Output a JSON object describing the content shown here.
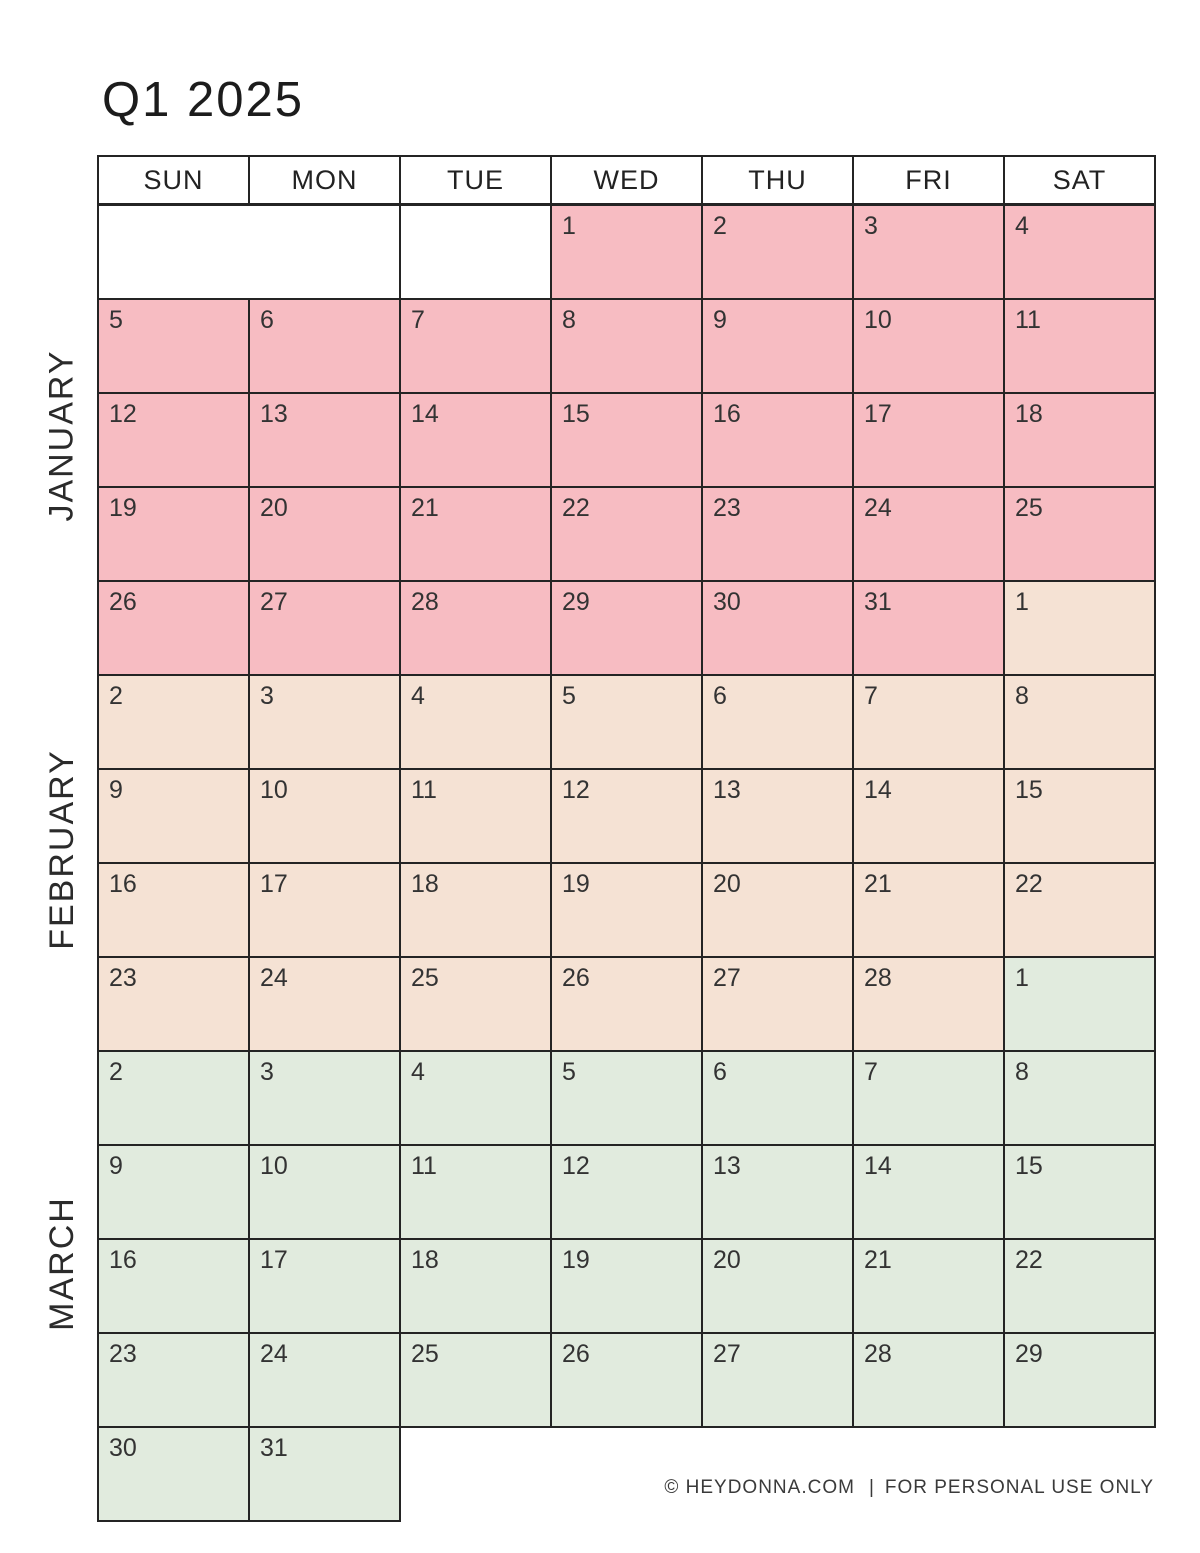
{
  "title": "Q1 2025",
  "day_headers": [
    "SUN",
    "MON",
    "TUE",
    "WED",
    "THU",
    "FRI",
    "SAT"
  ],
  "months": [
    {
      "id": "jan",
      "label": "JANUARY",
      "color": "#f7bcc2"
    },
    {
      "id": "feb",
      "label": "FEBRUARY",
      "color": "#f5e2d4"
    },
    {
      "id": "mar",
      "label": "MARCH",
      "color": "#e1ebde"
    }
  ],
  "weeks": [
    [
      {
        "b": 2
      },
      {
        "b": 1
      },
      {
        "d": 1,
        "m": "jan"
      },
      {
        "d": 2,
        "m": "jan"
      },
      {
        "d": 3,
        "m": "jan"
      },
      {
        "d": 4,
        "m": "jan"
      }
    ],
    [
      {
        "d": 5,
        "m": "jan"
      },
      {
        "d": 6,
        "m": "jan"
      },
      {
        "d": 7,
        "m": "jan"
      },
      {
        "d": 8,
        "m": "jan"
      },
      {
        "d": 9,
        "m": "jan"
      },
      {
        "d": 10,
        "m": "jan"
      },
      {
        "d": 11,
        "m": "jan"
      }
    ],
    [
      {
        "d": 12,
        "m": "jan"
      },
      {
        "d": 13,
        "m": "jan"
      },
      {
        "d": 14,
        "m": "jan"
      },
      {
        "d": 15,
        "m": "jan"
      },
      {
        "d": 16,
        "m": "jan"
      },
      {
        "d": 17,
        "m": "jan"
      },
      {
        "d": 18,
        "m": "jan"
      }
    ],
    [
      {
        "d": 19,
        "m": "jan"
      },
      {
        "d": 20,
        "m": "jan"
      },
      {
        "d": 21,
        "m": "jan"
      },
      {
        "d": 22,
        "m": "jan"
      },
      {
        "d": 23,
        "m": "jan"
      },
      {
        "d": 24,
        "m": "jan"
      },
      {
        "d": 25,
        "m": "jan"
      }
    ],
    [
      {
        "d": 26,
        "m": "jan"
      },
      {
        "d": 27,
        "m": "jan"
      },
      {
        "d": 28,
        "m": "jan"
      },
      {
        "d": 29,
        "m": "jan"
      },
      {
        "d": 30,
        "m": "jan"
      },
      {
        "d": 31,
        "m": "jan"
      },
      {
        "d": 1,
        "m": "feb"
      }
    ],
    [
      {
        "d": 2,
        "m": "feb"
      },
      {
        "d": 3,
        "m": "feb"
      },
      {
        "d": 4,
        "m": "feb"
      },
      {
        "d": 5,
        "m": "feb"
      },
      {
        "d": 6,
        "m": "feb"
      },
      {
        "d": 7,
        "m": "feb"
      },
      {
        "d": 8,
        "m": "feb"
      }
    ],
    [
      {
        "d": 9,
        "m": "feb"
      },
      {
        "d": 10,
        "m": "feb"
      },
      {
        "d": 11,
        "m": "feb"
      },
      {
        "d": 12,
        "m": "feb"
      },
      {
        "d": 13,
        "m": "feb"
      },
      {
        "d": 14,
        "m": "feb"
      },
      {
        "d": 15,
        "m": "feb"
      }
    ],
    [
      {
        "d": 16,
        "m": "feb"
      },
      {
        "d": 17,
        "m": "feb"
      },
      {
        "d": 18,
        "m": "feb"
      },
      {
        "d": 19,
        "m": "feb"
      },
      {
        "d": 20,
        "m": "feb"
      },
      {
        "d": 21,
        "m": "feb"
      },
      {
        "d": 22,
        "m": "feb"
      }
    ],
    [
      {
        "d": 23,
        "m": "feb"
      },
      {
        "d": 24,
        "m": "feb"
      },
      {
        "d": 25,
        "m": "feb"
      },
      {
        "d": 26,
        "m": "feb"
      },
      {
        "d": 27,
        "m": "feb"
      },
      {
        "d": 28,
        "m": "feb"
      },
      {
        "d": 1,
        "m": "mar"
      }
    ],
    [
      {
        "d": 2,
        "m": "mar"
      },
      {
        "d": 3,
        "m": "mar"
      },
      {
        "d": 4,
        "m": "mar"
      },
      {
        "d": 5,
        "m": "mar"
      },
      {
        "d": 6,
        "m": "mar"
      },
      {
        "d": 7,
        "m": "mar"
      },
      {
        "d": 8,
        "m": "mar"
      }
    ],
    [
      {
        "d": 9,
        "m": "mar"
      },
      {
        "d": 10,
        "m": "mar"
      },
      {
        "d": 11,
        "m": "mar"
      },
      {
        "d": 12,
        "m": "mar"
      },
      {
        "d": 13,
        "m": "mar"
      },
      {
        "d": 14,
        "m": "mar"
      },
      {
        "d": 15,
        "m": "mar"
      }
    ],
    [
      {
        "d": 16,
        "m": "mar"
      },
      {
        "d": 17,
        "m": "mar"
      },
      {
        "d": 18,
        "m": "mar"
      },
      {
        "d": 19,
        "m": "mar"
      },
      {
        "d": 20,
        "m": "mar"
      },
      {
        "d": 21,
        "m": "mar"
      },
      {
        "d": 22,
        "m": "mar"
      }
    ],
    [
      {
        "d": 23,
        "m": "mar"
      },
      {
        "d": 24,
        "m": "mar"
      },
      {
        "d": 25,
        "m": "mar"
      },
      {
        "d": 26,
        "m": "mar"
      },
      {
        "d": 27,
        "m": "mar"
      },
      {
        "d": 28,
        "m": "mar"
      },
      {
        "d": 29,
        "m": "mar"
      }
    ],
    [
      {
        "d": 30,
        "m": "mar"
      },
      {
        "d": 31,
        "m": "mar"
      },
      {
        "x": 5
      }
    ]
  ],
  "footer": {
    "copyright": "© HEYDONNA.COM",
    "separator": "|",
    "usage": "FOR PERSONAL USE ONLY"
  }
}
